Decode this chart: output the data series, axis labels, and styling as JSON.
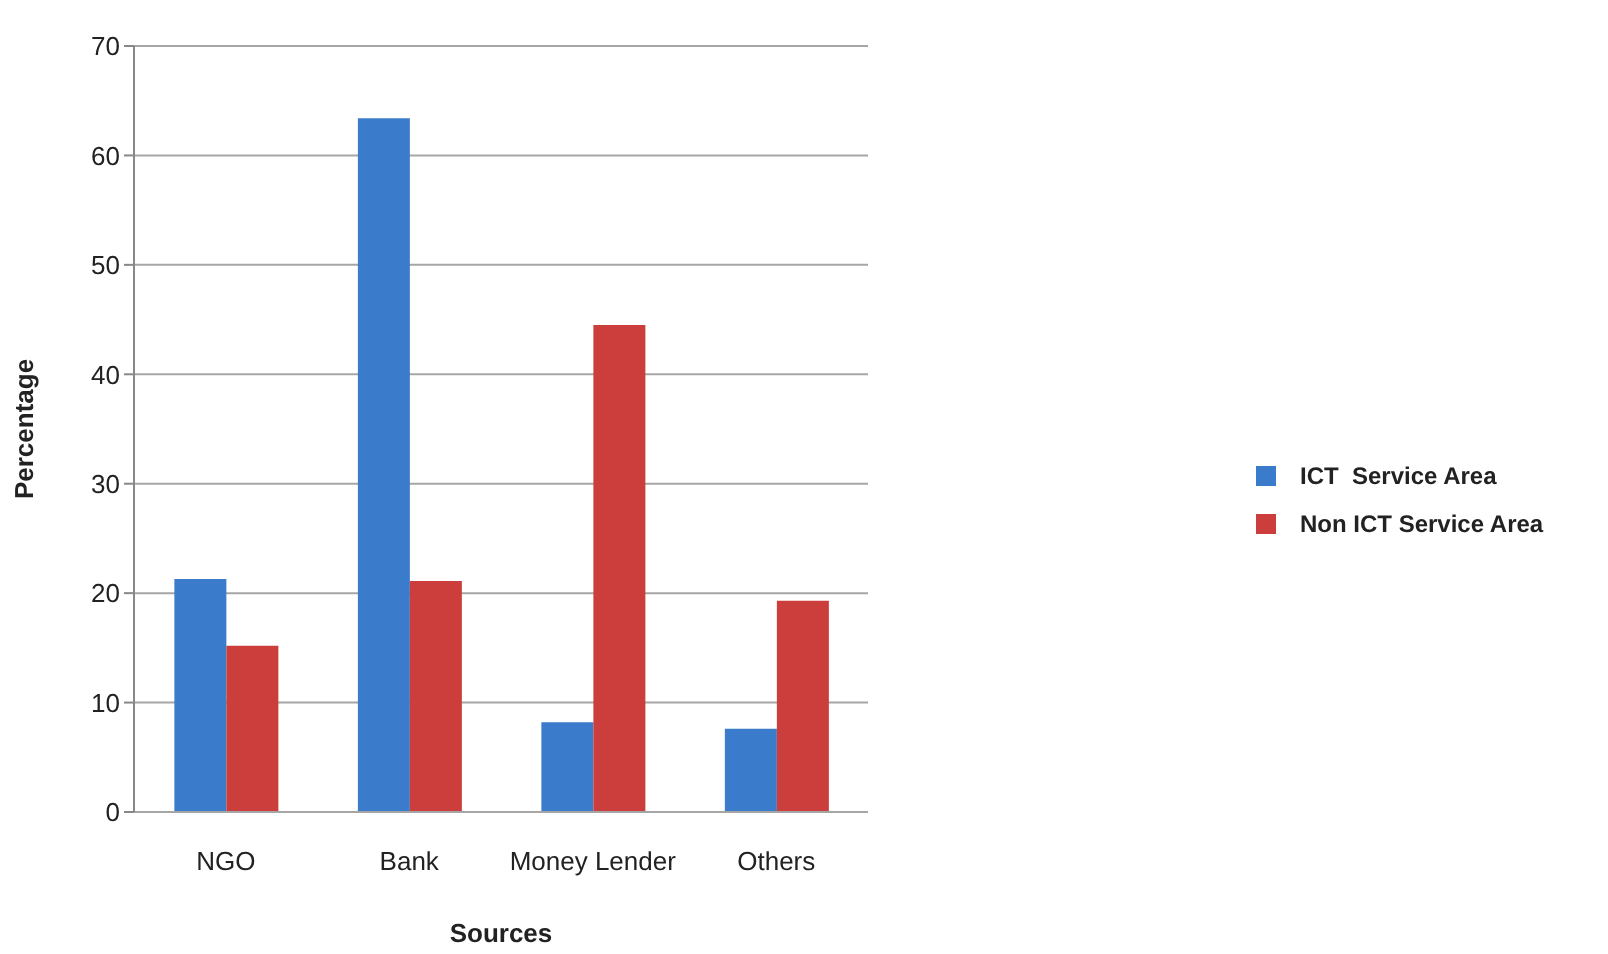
{
  "chart_data": {
    "type": "bar",
    "xlabel": "Sources",
    "ylabel": "Percentage",
    "categories": [
      "NGO",
      "Bank",
      "Money Lender",
      "Others"
    ],
    "series": [
      {
        "name": "ICT  Service Area",
        "color": "#3b7bcb",
        "values": [
          21.3,
          63.4,
          8.2,
          7.6
        ]
      },
      {
        "name": "Non ICT Service Area",
        "color": "#cc3e3b",
        "values": [
          15.2,
          21.1,
          44.5,
          19.3
        ]
      }
    ],
    "ylim": [
      0,
      70
    ],
    "yticks": [
      0,
      10,
      20,
      30,
      40,
      50,
      60,
      70
    ],
    "grid": "y",
    "legend": "right"
  }
}
